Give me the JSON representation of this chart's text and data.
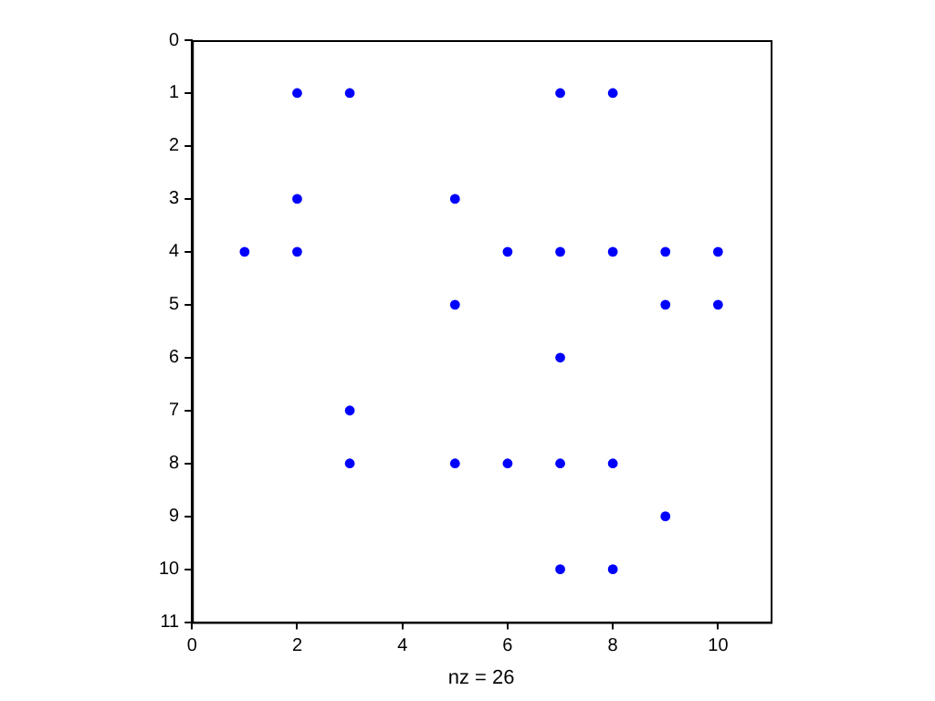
{
  "chart_data": {
    "type": "scatter",
    "xlabel": "nz = 26",
    "x": [
      2,
      3,
      7,
      8,
      2,
      5,
      1,
      2,
      6,
      7,
      8,
      9,
      10,
      5,
      9,
      10,
      7,
      3,
      3,
      5,
      6,
      7,
      8,
      9,
      7,
      8
    ],
    "values": [
      1,
      1,
      1,
      1,
      3,
      3,
      4,
      4,
      4,
      4,
      4,
      4,
      4,
      5,
      5,
      5,
      6,
      7,
      8,
      8,
      8,
      8,
      8,
      9,
      10,
      10
    ],
    "color": "#0000ff",
    "marker": "circle",
    "xlim": [
      0,
      11
    ],
    "xticks": [
      0,
      2,
      4,
      6,
      8,
      10
    ],
    "ylim": [
      11,
      0
    ],
    "yticks": [
      0,
      1,
      2,
      3,
      4,
      5,
      6,
      7,
      8,
      9,
      10,
      11
    ],
    "grid": false,
    "legend": false
  }
}
